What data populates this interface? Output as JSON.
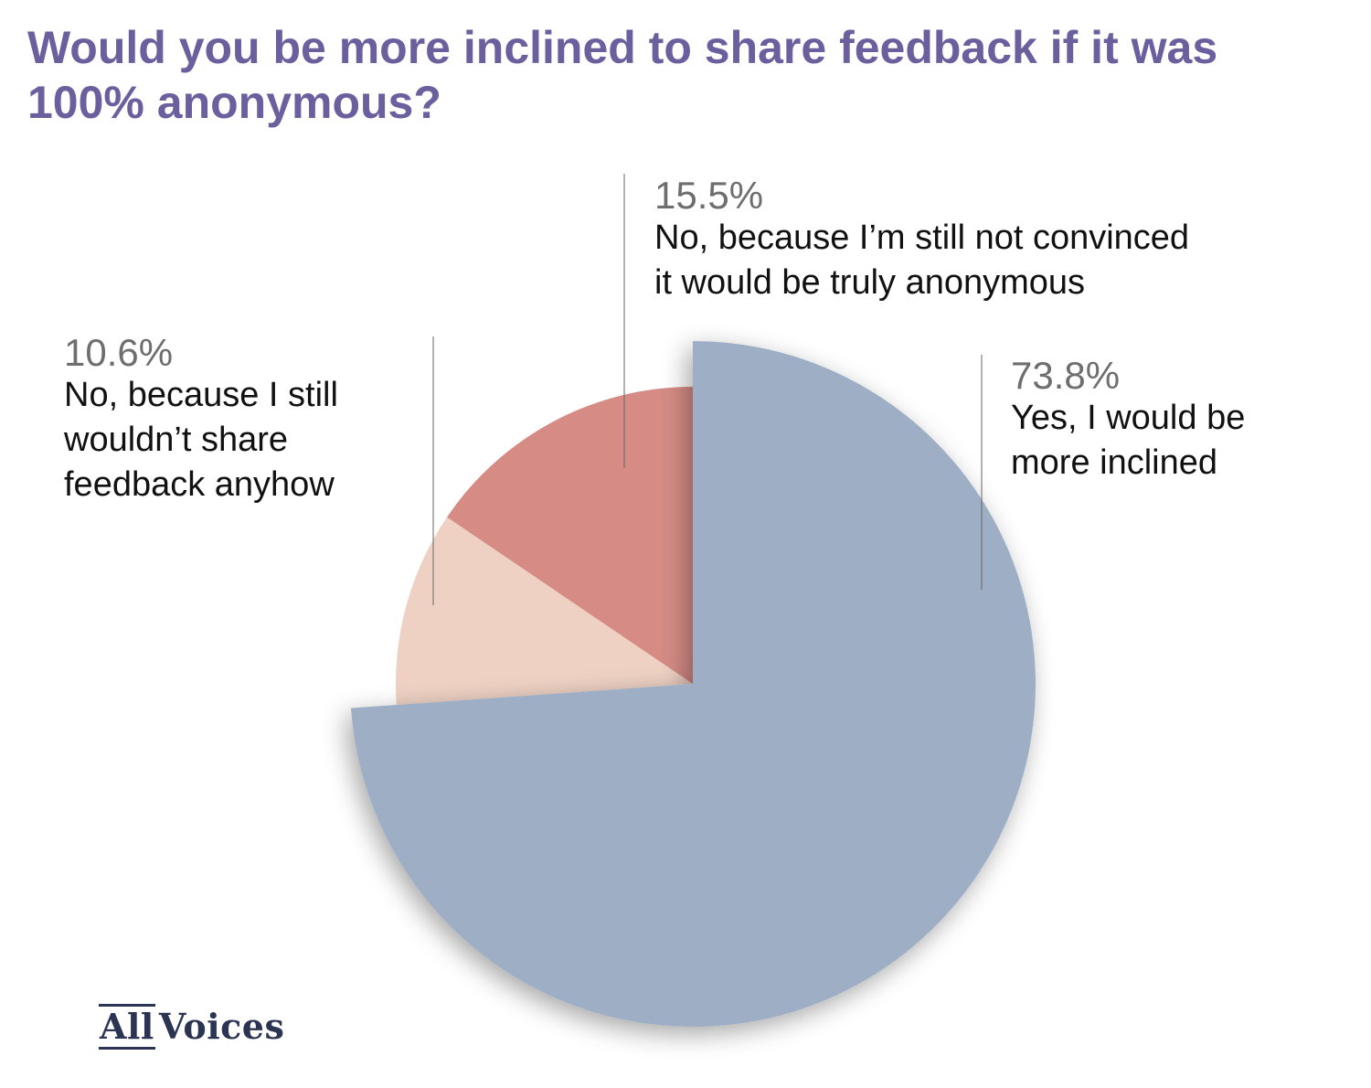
{
  "chart_data": {
    "type": "pie",
    "title": "Would you be more inclined to share feedback if it was 100% anonymous?",
    "slices": [
      {
        "label_lines": [
          "Yes, I would be",
          "more inclined"
        ],
        "value": 73.8,
        "value_label": "73.8%",
        "color": "#9daec5",
        "exploded": true
      },
      {
        "label_lines": [
          "No, because I still",
          "wouldn’t share",
          "feedback anyhow"
        ],
        "value": 10.6,
        "value_label": "10.6%",
        "color": "#eed1c3"
      },
      {
        "label_lines": [
          "No, because I’m still not convinced",
          "it would be truly anonymous"
        ],
        "value": 15.5,
        "value_label": "15.5%",
        "color": "#d68b85"
      }
    ]
  },
  "logo": {
    "part1": "All",
    "part2": "Voices"
  }
}
